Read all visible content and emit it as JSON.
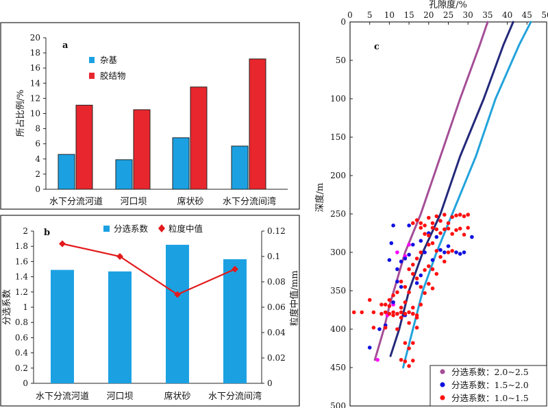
{
  "colors": {
    "blue": "#1ba1e2",
    "red": "#e8262d",
    "purple": "#a44e96",
    "navy": "#23297a",
    "lightblue": "#22a3dc",
    "magenta": "#ff00ff",
    "darkblue": "#1010e0",
    "dotred": "#ff1010",
    "line": "#e31a1c"
  },
  "chart_data": [
    {
      "id": "a",
      "panel_label": "a",
      "type": "bar",
      "categories": [
        "水下分流河道",
        "河口坝",
        "席状砂",
        "水下分流间湾"
      ],
      "series": [
        {
          "name": "杂基",
          "values": [
            4.6,
            3.9,
            6.8,
            5.7
          ]
        },
        {
          "name": "胶结物",
          "values": [
            11.1,
            10.5,
            13.5,
            17.2
          ]
        }
      ],
      "ylabel": "所占比例/%",
      "ylim": [
        0,
        20
      ],
      "yticks": [
        "0",
        "2",
        "4",
        "6",
        "8",
        "10",
        "12",
        "14",
        "16",
        "18",
        "20"
      ],
      "legend_position": "top-left"
    },
    {
      "id": "b",
      "panel_label": "b",
      "type": "bar+line",
      "categories": [
        "水下分流河道",
        "河口坝",
        "席状砂",
        "水下分流间湾"
      ],
      "bar_series": {
        "name": "分选系数",
        "values": [
          1.49,
          1.47,
          1.82,
          1.63
        ]
      },
      "line_series": {
        "name": "粒度中值",
        "values": [
          0.11,
          0.1,
          0.07,
          0.09
        ]
      },
      "ylabel_left": "分选系数",
      "ylabel_right": "粒度中值/mm",
      "ylim_left": [
        0,
        2
      ],
      "ylim_right": [
        0,
        0.12
      ],
      "yticks_left": [
        "0",
        "0.2",
        "0.4",
        "0.6",
        "0.8",
        "1",
        "1.2",
        "1.4",
        "1.6",
        "1.8",
        "2"
      ],
      "yticks_right": [
        "0",
        "0.02",
        "0.04",
        "0.06",
        "0.08",
        "0.1",
        "0.12"
      ],
      "legend_position": "top"
    },
    {
      "id": "c",
      "panel_label": "c",
      "type": "scatter+line",
      "xlabel": "孔隙度/%",
      "ylabel": "深度/m",
      "xlim": [
        0,
        50
      ],
      "ylim": [
        0,
        500
      ],
      "xticks": [
        "0",
        "5",
        "10",
        "15",
        "20",
        "25",
        "30",
        "35",
        "40",
        "45",
        "50"
      ],
      "yticks": [
        "0",
        "50",
        "100",
        "150",
        "200",
        "250",
        "300",
        "350",
        "400",
        "450",
        "500"
      ],
      "y_inverted": true,
      "legend_position": "bottom-right",
      "curves": [
        {
          "name": "分选系数：2.0~2.5",
          "x": [
            35,
            33,
            28,
            23,
            18,
            14,
            10,
            8.6,
            6.3
          ],
          "y": [
            0,
            30,
            100,
            175,
            250,
            300,
            370,
            400,
            440
          ]
        },
        {
          "name": "分选系数：1.5~2.0",
          "x": [
            41.5,
            39,
            34,
            28,
            23,
            18.5,
            15,
            12.5,
            10.3
          ],
          "y": [
            0,
            30,
            100,
            175,
            250,
            300,
            350,
            400,
            435
          ]
        },
        {
          "name": "分选系数：1.0~1.5",
          "x": [
            46,
            43,
            37,
            32,
            26,
            22,
            18.5,
            16,
            13.5
          ],
          "y": [
            0,
            30,
            100,
            175,
            250,
            300,
            350,
            400,
            450
          ]
        }
      ],
      "scatter": [
        {
          "name": "分选系数：2.0~2.5",
          "points": [
            [
              7,
              440
            ],
            [
              12,
              300
            ],
            [
              15,
              290
            ],
            [
              11,
              368
            ],
            [
              9.5,
              382
            ],
            [
              14,
              305
            ]
          ]
        },
        {
          "name": "分选系数：1.5~2.0",
          "points": [
            [
              5,
              424
            ],
            [
              7.5,
              400
            ],
            [
              9,
              395
            ],
            [
              11,
              365
            ],
            [
              12,
              338
            ],
            [
              13,
              312
            ],
            [
              14,
              308
            ],
            [
              15,
              303
            ],
            [
              16,
              290
            ],
            [
              18,
              285
            ],
            [
              20,
              275
            ],
            [
              22,
              280
            ],
            [
              23,
              297
            ],
            [
              24,
              300
            ],
            [
              25,
              292
            ],
            [
              27,
              300
            ],
            [
              28,
              302
            ],
            [
              29,
              300
            ],
            [
              31,
              280
            ],
            [
              15,
              265
            ],
            [
              11,
              265
            ],
            [
              10.5,
              288
            ],
            [
              10,
              310
            ],
            [
              12,
              322
            ],
            [
              13,
              345
            ],
            [
              17,
              340
            ],
            [
              19,
              300
            ],
            [
              21,
              310
            ],
            [
              18,
              330
            ],
            [
              14,
              382
            ],
            [
              16,
              380
            ],
            [
              12,
              380
            ]
          ]
        },
        {
          "name": "分选系数：1.0~1.5",
          "points": [
            [
              1,
              378
            ],
            [
              3,
              378
            ],
            [
              6,
              378
            ],
            [
              8,
              380
            ],
            [
              9,
              378
            ],
            [
              10,
              380
            ],
            [
              11,
              378
            ],
            [
              12,
              380
            ],
            [
              13,
              378
            ],
            [
              14,
              380
            ],
            [
              15,
              378
            ],
            [
              16,
              380
            ],
            [
              17,
              382
            ],
            [
              9,
              368
            ],
            [
              10,
              362
            ],
            [
              8,
              368
            ],
            [
              5,
              362
            ],
            [
              14,
              365
            ],
            [
              16,
              372
            ],
            [
              18,
              368
            ],
            [
              17,
              385
            ],
            [
              13,
              385
            ],
            [
              11,
              382
            ],
            [
              6,
              398
            ],
            [
              9,
              398
            ],
            [
              12,
              400
            ],
            [
              15,
              392
            ],
            [
              17,
              398
            ],
            [
              14,
              418
            ],
            [
              16,
              418
            ],
            [
              15,
              425
            ],
            [
              13,
              440
            ],
            [
              14,
              442
            ],
            [
              15,
              448
            ],
            [
              16,
              441
            ],
            [
              20,
              255
            ],
            [
              21,
              262
            ],
            [
              22,
              253
            ],
            [
              23,
              259
            ],
            [
              24,
              251
            ],
            [
              25,
              262
            ],
            [
              26,
              254
            ],
            [
              27,
              252
            ],
            [
              28,
              251
            ],
            [
              29,
              253
            ],
            [
              30,
              251
            ],
            [
              24,
              270
            ],
            [
              25,
              269
            ],
            [
              26,
              276
            ],
            [
              27,
              271
            ],
            [
              28,
              269
            ],
            [
              29,
              277
            ],
            [
              30,
              268
            ],
            [
              23,
              275
            ],
            [
              22,
              270
            ],
            [
              21,
              268
            ],
            [
              20,
              278
            ],
            [
              19,
              265
            ],
            [
              18,
              262
            ],
            [
              17,
              258
            ],
            [
              16,
              262
            ],
            [
              18,
              268
            ],
            [
              19,
              276
            ],
            [
              20,
              290
            ],
            [
              21,
              288
            ],
            [
              22,
              298
            ],
            [
              23,
              306
            ],
            [
              24,
              312
            ],
            [
              25,
              300
            ],
            [
              26,
              298
            ],
            [
              18,
              300
            ],
            [
              17,
              308
            ],
            [
              16,
              316
            ],
            [
              15,
              322
            ],
            [
              16,
              328
            ],
            [
              17,
              334
            ],
            [
              19,
              323
            ],
            [
              20,
              318
            ],
            [
              21,
              322
            ],
            [
              22,
              328
            ],
            [
              18,
              345
            ],
            [
              19,
              353
            ],
            [
              20,
              341
            ],
            [
              21,
              347
            ],
            [
              15,
              352
            ],
            [
              14,
              345
            ],
            [
              13,
              338
            ],
            [
              12,
              352
            ],
            [
              11,
              356
            ],
            [
              10,
              370
            ],
            [
              13,
              372
            ]
          ]
        }
      ]
    }
  ]
}
